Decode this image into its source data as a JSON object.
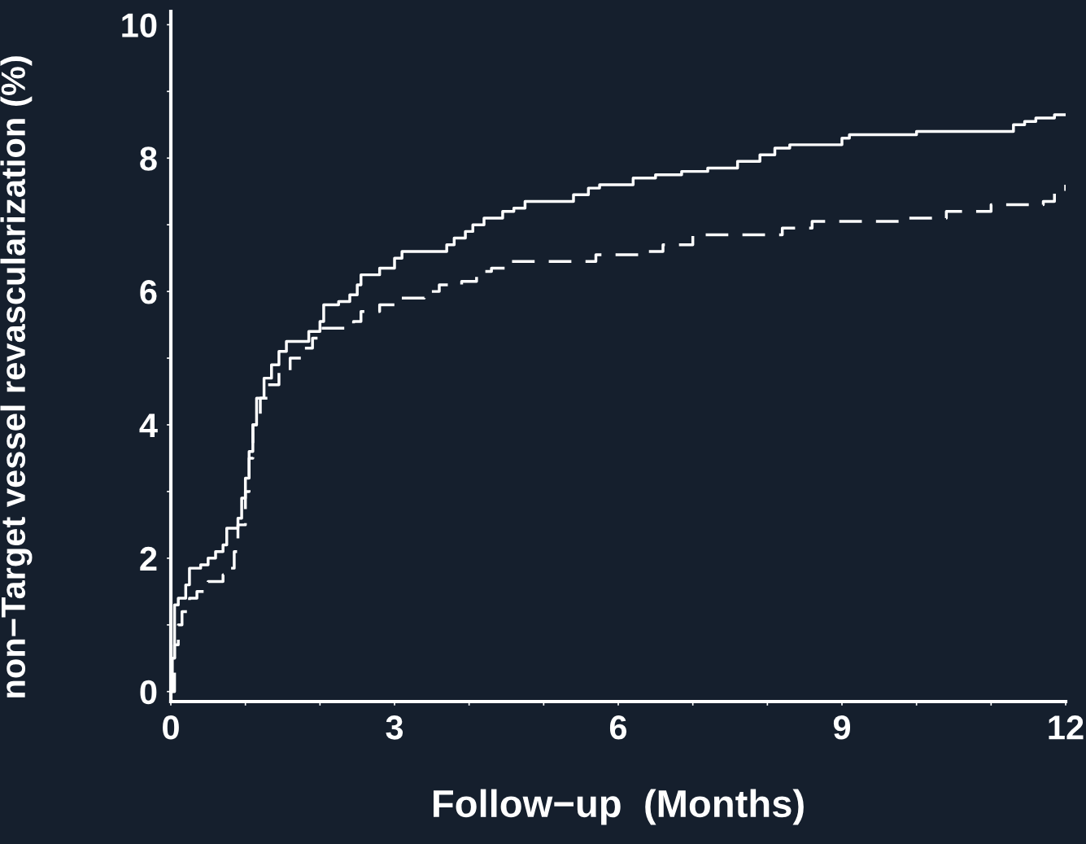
{
  "chart_data": {
    "type": "step",
    "xlabel": "Follow−up  (Months)",
    "ylabel": "non−Target vessel revascularization (%)",
    "xlim": [
      0,
      12
    ],
    "ylim": [
      -0.15,
      10.2
    ],
    "xticks": [
      0,
      {
        "value": 1,
        "label": null
      },
      {
        "value": 2,
        "label": null
      },
      3,
      {
        "value": 4,
        "label": null
      },
      {
        "value": 5,
        "label": null
      },
      6,
      {
        "value": 7,
        "label": null
      },
      {
        "value": 8,
        "label": null
      },
      9,
      {
        "value": 10,
        "label": null
      },
      {
        "value": 11,
        "label": null
      },
      12
    ],
    "yticks": [
      0,
      {
        "value": 1,
        "label": null
      },
      2,
      {
        "value": 3,
        "label": null
      },
      4,
      {
        "value": 5,
        "label": null
      },
      6,
      {
        "value": 7,
        "label": null
      },
      8,
      {
        "value": 9,
        "label": null
      },
      10
    ],
    "grid": false,
    "legend": false,
    "series": [
      {
        "color": "#ffffff",
        "line_style": "solid",
        "x": [
          0,
          0.02,
          0.05,
          0.1,
          0.2,
          0.25,
          0.4,
          0.5,
          0.6,
          0.7,
          0.75,
          0.85,
          0.9,
          0.95,
          1.0,
          1.05,
          1.1,
          1.15,
          1.25,
          1.35,
          1.45,
          1.55,
          1.85,
          2.0,
          2.05,
          2.25,
          2.4,
          2.5,
          2.55,
          2.8,
          3.0,
          3.1,
          3.7,
          3.8,
          3.95,
          4.05,
          4.2,
          4.45,
          4.6,
          4.75,
          5.4,
          5.6,
          5.75,
          6.2,
          6.5,
          6.85,
          7.2,
          7.6,
          7.9,
          8.1,
          8.3,
          9.0,
          9.1,
          10.0,
          11.3,
          11.45,
          11.6,
          11.85,
          12
        ],
        "values": [
          0,
          0.5,
          1.3,
          1.4,
          1.6,
          1.85,
          1.9,
          2.0,
          2.1,
          2.2,
          2.45,
          2.45,
          2.6,
          2.9,
          3.2,
          3.6,
          4.0,
          4.4,
          4.7,
          4.9,
          5.1,
          5.25,
          5.4,
          5.55,
          5.8,
          5.85,
          5.95,
          6.1,
          6.25,
          6.35,
          6.5,
          6.6,
          6.7,
          6.8,
          6.9,
          7.0,
          7.1,
          7.2,
          7.25,
          7.35,
          7.45,
          7.55,
          7.6,
          7.7,
          7.75,
          7.8,
          7.85,
          7.95,
          8.05,
          8.15,
          8.2,
          8.3,
          8.35,
          8.4,
          8.5,
          8.55,
          8.6,
          8.65,
          8.65
        ]
      },
      {
        "color": "#ffffff",
        "line_style": "dashed",
        "x": [
          0,
          0.05,
          0.1,
          0.15,
          0.25,
          0.35,
          0.5,
          0.7,
          0.8,
          0.85,
          0.9,
          1.0,
          1.05,
          1.1,
          1.2,
          1.3,
          1.45,
          1.6,
          1.75,
          1.9,
          2.0,
          2.45,
          2.55,
          2.8,
          3.0,
          3.4,
          3.6,
          3.9,
          4.1,
          4.3,
          4.5,
          5.7,
          6.3,
          6.6,
          7.0,
          8.2,
          8.6,
          9.8,
          10.4,
          11.0,
          11.7,
          11.85,
          12
        ],
        "values": [
          0,
          0.7,
          1.0,
          1.2,
          1.4,
          1.5,
          1.65,
          1.75,
          1.85,
          2.1,
          2.5,
          3.0,
          3.5,
          4.0,
          4.4,
          4.6,
          4.8,
          5.0,
          5.15,
          5.3,
          5.45,
          5.55,
          5.7,
          5.8,
          5.9,
          6.0,
          6.1,
          6.15,
          6.3,
          6.35,
          6.45,
          6.55,
          6.6,
          6.7,
          6.85,
          6.95,
          7.05,
          7.1,
          7.2,
          7.3,
          7.35,
          7.5,
          7.6
        ]
      }
    ]
  }
}
